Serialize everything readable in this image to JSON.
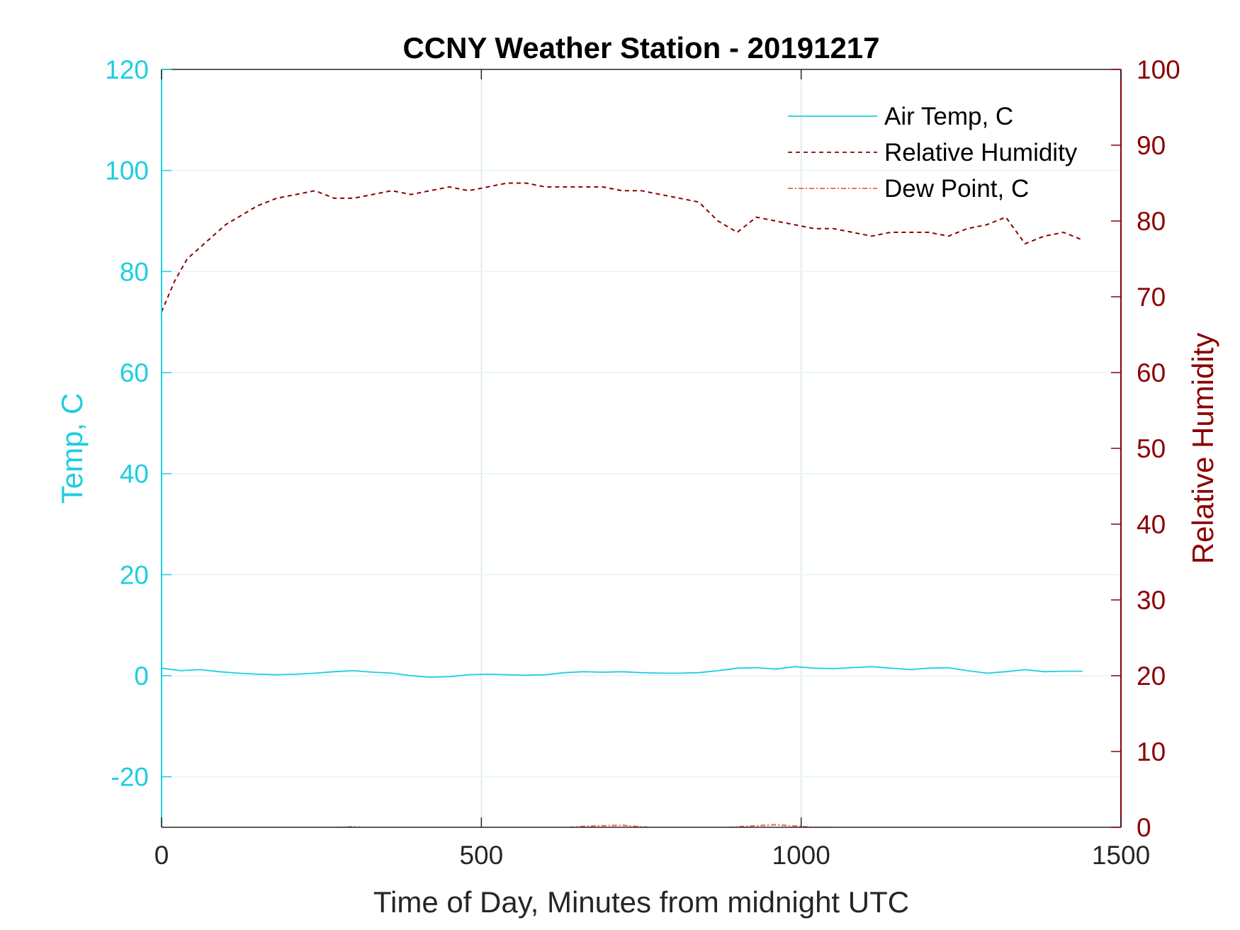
{
  "chart_data": {
    "type": "line",
    "title": "CCNY Weather Station - 20191217",
    "xlabel": "Time of Day, Minutes from midnight UTC",
    "ylabel_left": "Temp, C",
    "ylabel_right": "Relative Humidity",
    "xlim": [
      0,
      1500
    ],
    "ylim_left": [
      -30,
      120
    ],
    "ylim_right": [
      0,
      100
    ],
    "xticks": [
      0,
      500,
      1000,
      1500
    ],
    "yticks_left": [
      -20,
      0,
      20,
      40,
      60,
      80,
      100,
      120
    ],
    "yticks_right": [
      0,
      10,
      20,
      30,
      40,
      50,
      60,
      70,
      80,
      90,
      100
    ],
    "grid": true,
    "legend_position": "top-right",
    "colors": {
      "left_axis": "#1ccee0",
      "right_axis": "#8b0000",
      "dew": "#e8643c",
      "grid": "#d9e6ee"
    },
    "series": [
      {
        "name": "Air Temp, C",
        "axis": "left",
        "style": "solid",
        "color": "#1ccee0",
        "x": [
          0,
          30,
          60,
          90,
          120,
          150,
          180,
          210,
          240,
          270,
          300,
          330,
          360,
          390,
          420,
          450,
          480,
          510,
          540,
          570,
          600,
          630,
          660,
          690,
          720,
          750,
          780,
          810,
          840,
          870,
          900,
          930,
          960,
          990,
          1020,
          1050,
          1080,
          1110,
          1140,
          1170,
          1200,
          1230,
          1260,
          1290,
          1320,
          1350,
          1380,
          1410,
          1440
        ],
        "y": [
          1.5,
          1.0,
          1.2,
          0.8,
          0.5,
          0.3,
          0.2,
          0.3,
          0.5,
          0.8,
          1.0,
          0.7,
          0.5,
          0.0,
          -0.3,
          -0.2,
          0.2,
          0.3,
          0.2,
          0.1,
          0.2,
          0.6,
          0.8,
          0.7,
          0.8,
          0.6,
          0.5,
          0.5,
          0.6,
          1.0,
          1.5,
          1.6,
          1.3,
          1.8,
          1.5,
          1.4,
          1.6,
          1.8,
          1.5,
          1.2,
          1.5,
          1.6,
          1.0,
          0.5,
          0.8,
          1.2,
          0.8,
          0.9,
          0.9
        ]
      },
      {
        "name": "Relative Humidity",
        "axis": "right",
        "style": "dashed",
        "color": "#8b0000",
        "x": [
          0,
          20,
          40,
          60,
          80,
          100,
          120,
          150,
          180,
          210,
          240,
          270,
          300,
          330,
          360,
          390,
          420,
          450,
          480,
          510,
          540,
          570,
          600,
          630,
          660,
          690,
          720,
          750,
          780,
          810,
          840,
          870,
          900,
          930,
          960,
          990,
          1020,
          1050,
          1080,
          1110,
          1140,
          1170,
          1200,
          1230,
          1260,
          1290,
          1320,
          1350,
          1380,
          1410,
          1440
        ],
        "y": [
          68,
          72,
          75,
          76.5,
          78,
          79.5,
          80.5,
          82,
          83,
          83.5,
          84,
          83,
          83,
          83.5,
          84,
          83.5,
          84,
          84.5,
          84,
          84.5,
          85,
          85,
          84.5,
          84.5,
          84.5,
          84.5,
          84,
          84,
          83.5,
          83,
          82.5,
          80,
          78.5,
          80.5,
          80,
          79.5,
          79,
          79,
          78.5,
          78,
          78.5,
          78.5,
          78.5,
          78,
          79,
          79.5,
          80.5,
          77,
          78,
          78.5,
          77.5
        ]
      },
      {
        "name": "Dew Point, C",
        "axis": "left",
        "style": "dashdot",
        "color": "#e8643c",
        "x": [
          240,
          300,
          360,
          420,
          480,
          540,
          600,
          660,
          720,
          780,
          840,
          900,
          960,
          1020,
          1080,
          1140,
          1180
        ],
        "y": [
          -30.2,
          -29.9,
          -30.6,
          -31.0,
          -31.5,
          -30.8,
          -30.4,
          -29.8,
          -29.6,
          -30.2,
          -30.5,
          -29.9,
          -29.5,
          -30.0,
          -30.1,
          -30.4,
          -30.2
        ]
      }
    ]
  }
}
